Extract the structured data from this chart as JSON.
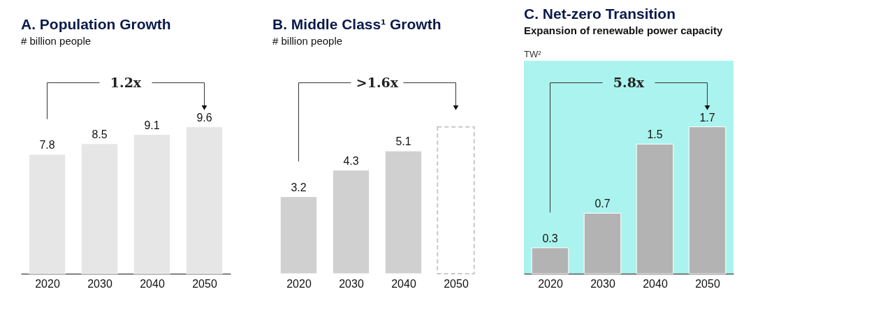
{
  "chart_data": [
    {
      "type": "bar",
      "title": "A. Population Growth",
      "subtitle": "# billion people",
      "categories": [
        "2020",
        "2030",
        "2040",
        "2050"
      ],
      "values": [
        7.8,
        8.5,
        9.1,
        9.6
      ],
      "color": "#e6e6e6",
      "data_labels": true,
      "annotations": [
        "1.2x"
      ],
      "tick_labels": "x"
    },
    {
      "type": "bar",
      "title": "B. Middle Class¹ Growth",
      "subtitle": "# billion people",
      "categories": [
        "2020",
        "2030",
        "2040",
        "2050"
      ],
      "series": [
        {
          "color": "#d0d0d0",
          "values": [
            3.2,
            4.3,
            5.1,
            null
          ],
          "value_labels": [
            "3.2",
            "4.3",
            "5.1",
            null
          ]
        },
        {
          "color": "#c8c8c8",
          "values": [
            null,
            null,
            null,
            6.1
          ],
          "line_style": "dashed"
        }
      ],
      "annotations": [
        ">1.6x"
      ],
      "tick_labels": "x"
    },
    {
      "type": "bar",
      "title": "C. Net-zero Transition",
      "subtitle": "Expansion of renewable power capacity",
      "ylabel": "TW²",
      "categories": [
        "2020",
        "2030",
        "2040",
        "2050"
      ],
      "values": [
        0.3,
        0.7,
        1.5,
        1.7
      ],
      "color": "#b3b3b3",
      "data_labels": true,
      "annotations": [
        "5.8x"
      ],
      "tick_labels": "x"
    }
  ]
}
